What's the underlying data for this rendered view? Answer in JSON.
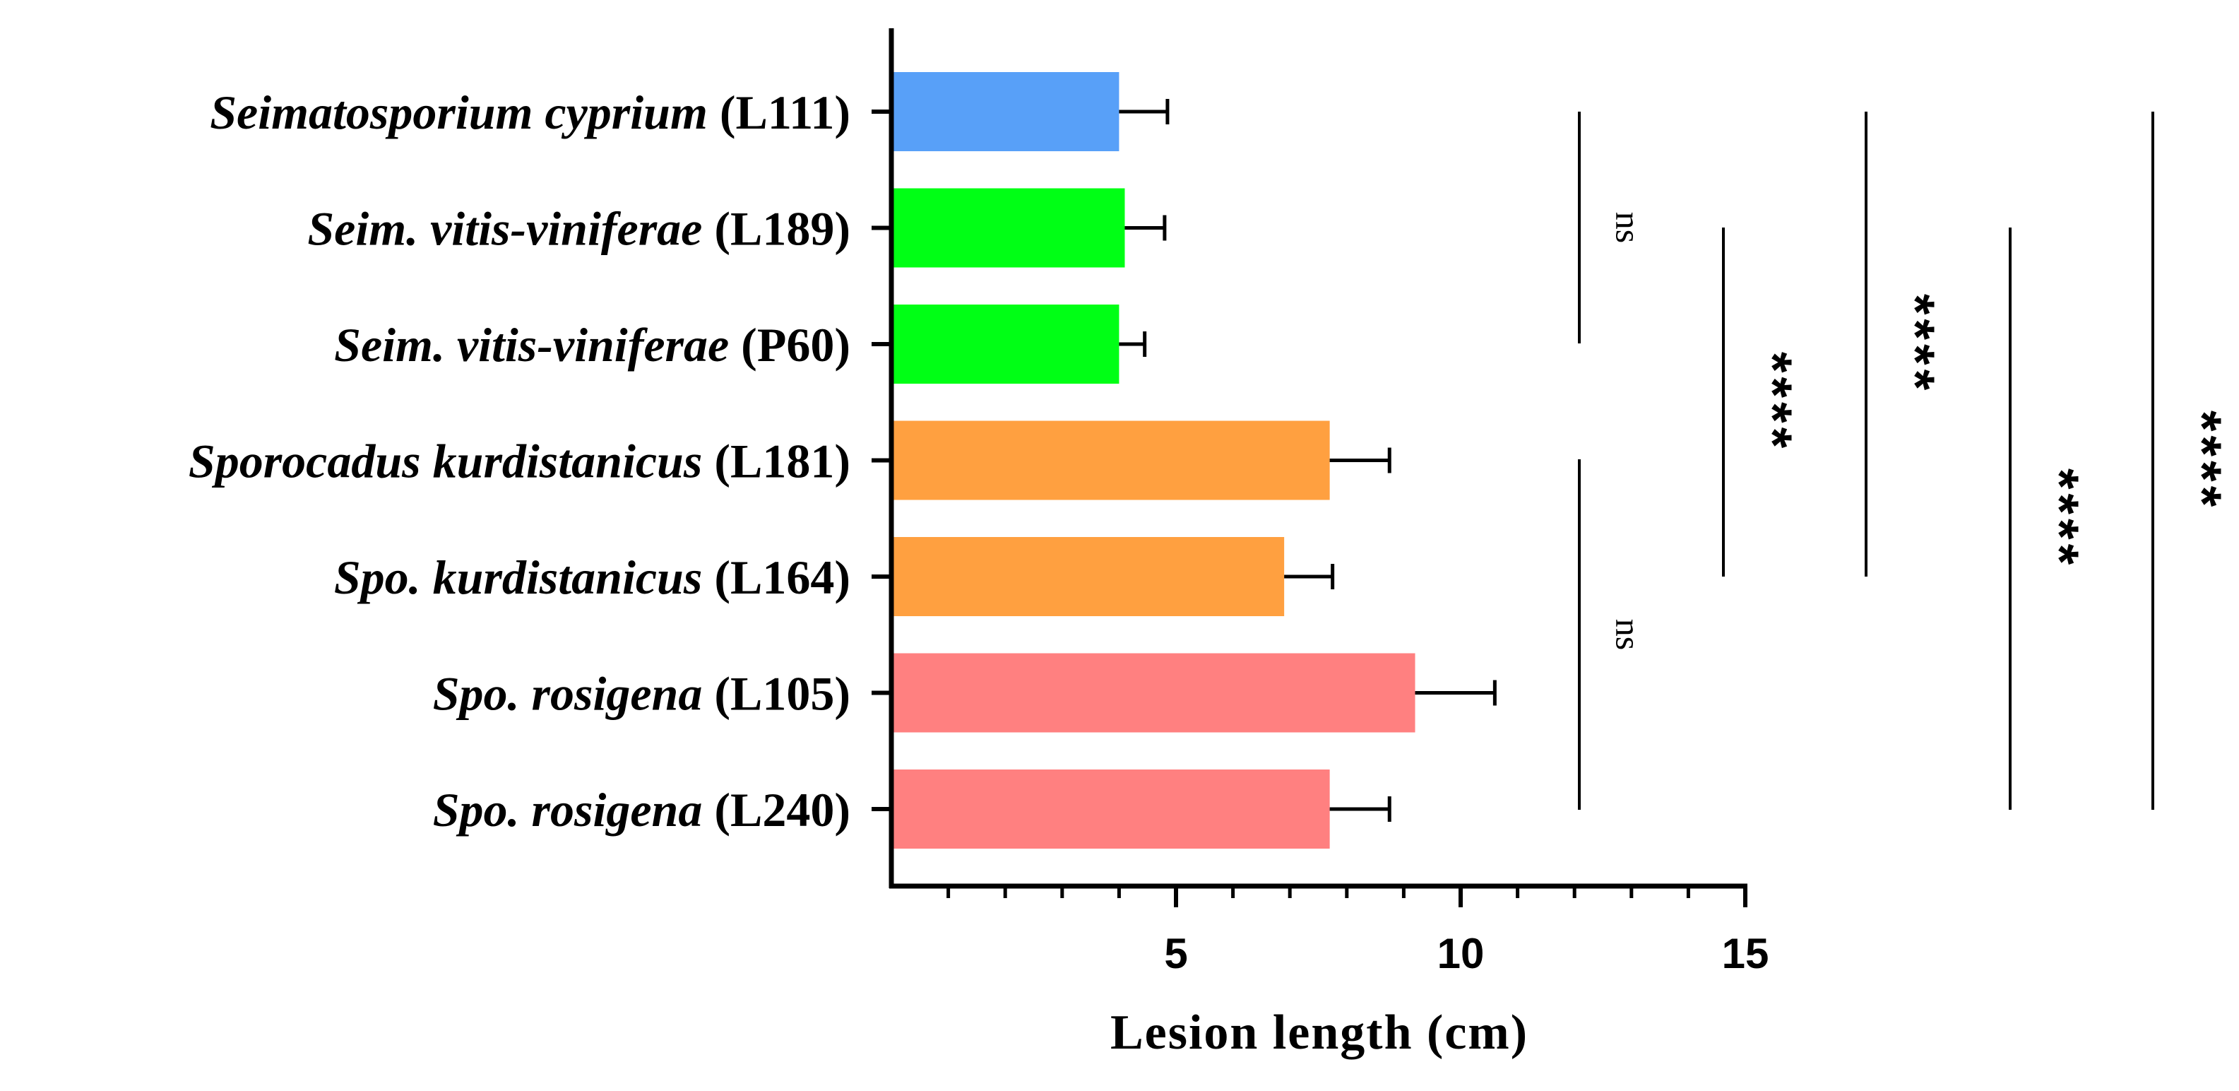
{
  "chart_data": {
    "type": "bar",
    "orientation": "horizontal",
    "xlabel": "Lesion length (cm)",
    "xlim": [
      0,
      15
    ],
    "major_ticks": [
      5,
      10,
      15
    ],
    "minor_tick_step": 1,
    "categories": [
      {
        "italic": "Seimatosporium cyprium",
        "code": "(L111)"
      },
      {
        "italic": "Seim. vitis-viniferae",
        "code": "(L189)"
      },
      {
        "italic": "Seim. vitis-viniferae",
        "code": "(P60)"
      },
      {
        "italic": "Sporocadus kurdistanicus",
        "code": "(L181)"
      },
      {
        "italic": "Spo. kurdistanicus",
        "code": "(L164)"
      },
      {
        "italic": "Spo. rosigena",
        "code": "(L105)"
      },
      {
        "italic": "Spo. rosigena",
        "code": "(L240)"
      }
    ],
    "values": [
      4.0,
      4.1,
      4.0,
      7.7,
      6.9,
      9.2,
      7.7
    ],
    "errors": [
      0.85,
      0.7,
      0.45,
      1.05,
      0.85,
      1.4,
      1.05
    ],
    "colors": [
      "#58a0f8",
      "#00ff15",
      "#00ff15",
      "#ffa040",
      "#ffa040",
      "#ff8080",
      "#ff8080"
    ],
    "comparisons": [
      {
        "from": 0,
        "to": 2,
        "label": "ns"
      },
      {
        "from": 1,
        "to": 4,
        "label": "****"
      },
      {
        "from": 0,
        "to": 4,
        "label": "****"
      },
      {
        "from": 3,
        "to": 6,
        "label": "ns"
      },
      {
        "from": 1,
        "to": 6,
        "label": "****"
      },
      {
        "from": 0,
        "to": 6,
        "label": "****"
      }
    ]
  }
}
